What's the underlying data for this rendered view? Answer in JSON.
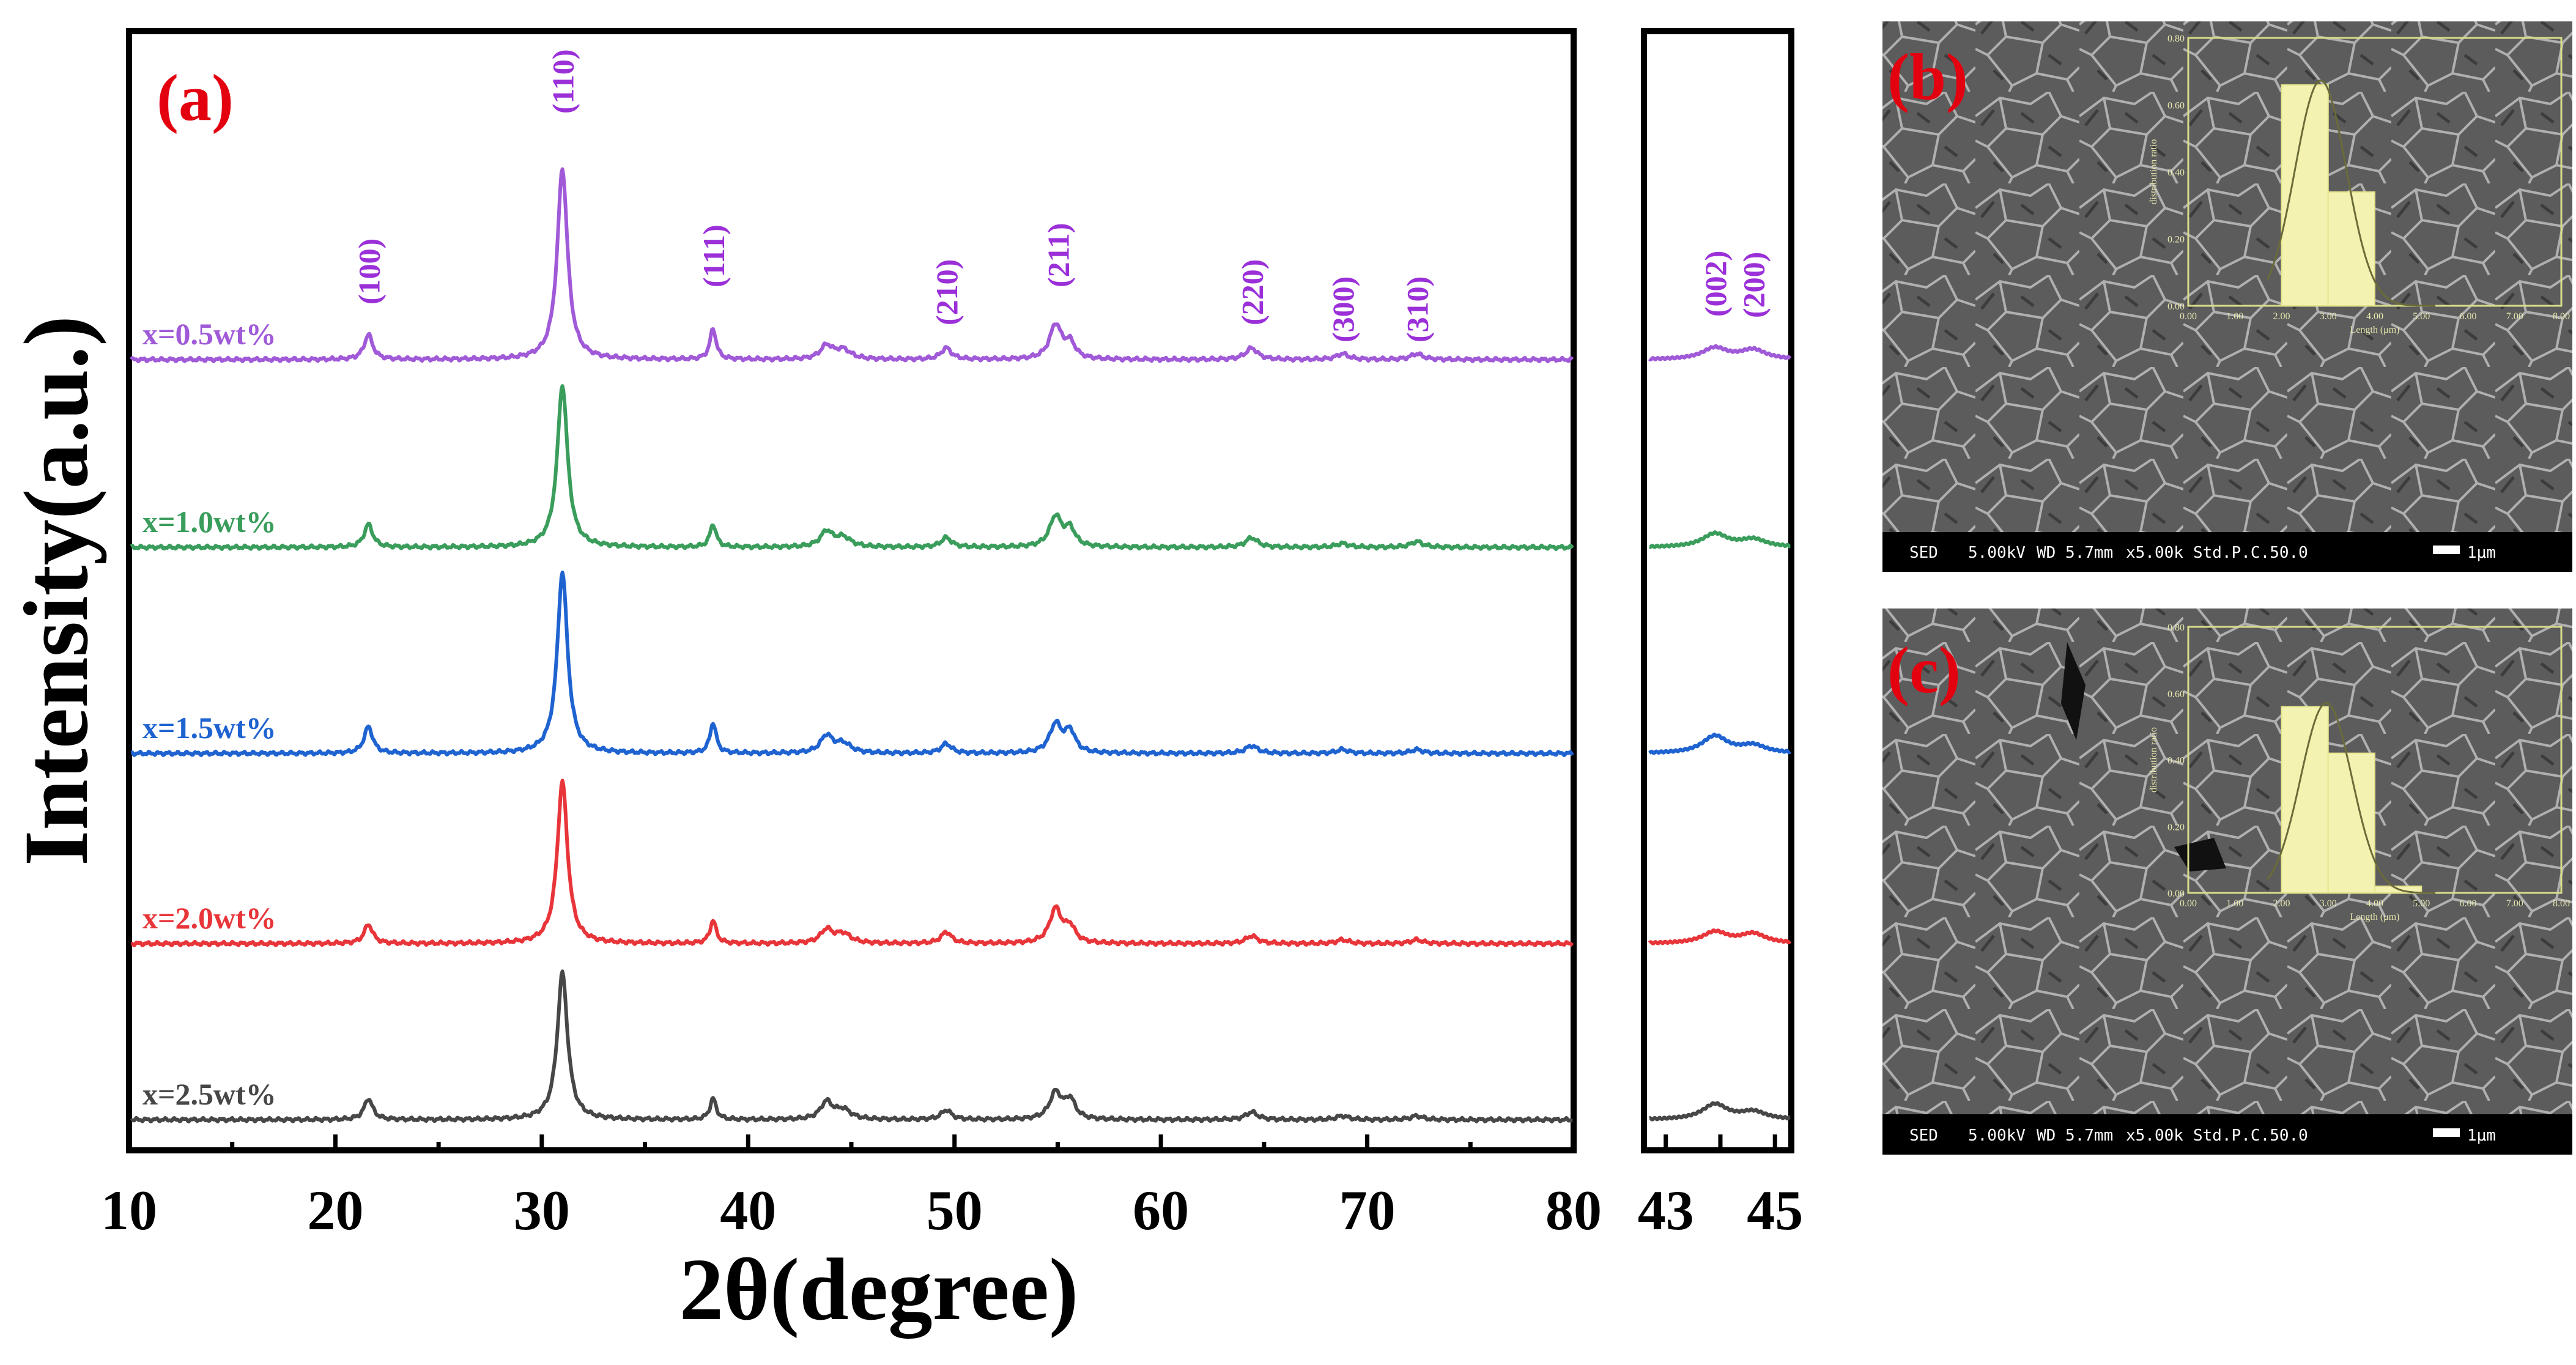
{
  "panel_a": {
    "label": "(a)",
    "label_color": "#e3000f",
    "ylabel": "Intensity(a.u.)",
    "xlabel": "2θ(degree)"
  },
  "panel_b": {
    "label": "(b)",
    "label_color": "#e3000f",
    "sem_info": {
      "detector": "SED",
      "voltage": "5.00kV",
      "wd": "WD 5.7mm",
      "mag": "x5.00k",
      "mode": "Std.P.C.50.0",
      "scale": "1μm"
    },
    "inset": {
      "ylabel": "distribution ratio",
      "xlabel": "Length (μm)"
    }
  },
  "panel_c": {
    "label": "(c)",
    "label_color": "#e3000f",
    "sem_info": {
      "detector": "SED",
      "voltage": "5.00kV",
      "wd": "WD 5.7mm",
      "mag": "x5.00k",
      "mode": "Std.P.C.50.0",
      "scale": "1μm"
    },
    "inset": {
      "ylabel": "distribution ratio",
      "xlabel": "Length (μm)"
    }
  },
  "chart_data": [
    {
      "type": "line",
      "title": "",
      "xlabel": "2θ(degree)",
      "ylabel": "Intensity(a.u.)",
      "xlim": [
        10,
        80
      ],
      "xticks": [
        10,
        20,
        30,
        40,
        50,
        60,
        70,
        80
      ],
      "peak_positions": [
        21.6,
        31.0,
        38.3,
        43.8,
        44.6,
        49.6,
        54.9,
        55.6,
        64.4,
        68.8,
        72.4
      ],
      "peak_labels": [
        {
          "x": 21.6,
          "text": "(100)"
        },
        {
          "x": 31.0,
          "text": "(110)"
        },
        {
          "x": 38.3,
          "text": "(111)"
        },
        {
          "x": 49.6,
          "text": "(210)"
        },
        {
          "x": 55.0,
          "text": "(211)"
        },
        {
          "x": 64.4,
          "text": "(220)"
        },
        {
          "x": 68.8,
          "text": "(300)"
        },
        {
          "x": 72.4,
          "text": "(310)"
        }
      ],
      "peak_label_color": "#9b30d9",
      "series": [
        {
          "name": "x=0.5wt%",
          "color": "#a05ad8",
          "peaks": [
            0.13,
            1.0,
            0.16,
            0.07,
            0.05,
            0.06,
            0.18,
            0.08,
            0.06,
            0.03,
            0.03
          ]
        },
        {
          "name": "x=1.0wt%",
          "color": "#3a9d5c",
          "peaks": [
            0.12,
            0.85,
            0.12,
            0.08,
            0.05,
            0.05,
            0.16,
            0.09,
            0.05,
            0.02,
            0.03
          ]
        },
        {
          "name": "x=1.5wt%",
          "color": "#1f63d1",
          "peaks": [
            0.14,
            0.95,
            0.16,
            0.09,
            0.05,
            0.05,
            0.15,
            0.11,
            0.04,
            0.02,
            0.02
          ]
        },
        {
          "name": "x=2.0wt%",
          "color": "#e8353a",
          "peaks": [
            0.1,
            0.85,
            0.12,
            0.07,
            0.05,
            0.06,
            0.18,
            0.08,
            0.04,
            0.02,
            0.02
          ]
        },
        {
          "name": "x=2.5wt%",
          "color": "#474747",
          "peaks": [
            0.11,
            0.77,
            0.11,
            0.09,
            0.05,
            0.05,
            0.14,
            0.1,
            0.04,
            0.02,
            0.02
          ]
        }
      ]
    },
    {
      "type": "line",
      "title": "",
      "xlabel": "",
      "xlim": [
        42.6,
        45.3
      ],
      "xticks": [
        43,
        45
      ],
      "peak_labels": [
        {
          "x": 43.9,
          "text": "(002)"
        },
        {
          "x": 44.6,
          "text": "(200)"
        }
      ],
      "series": [
        {
          "name": "x=0.5wt%",
          "color": "#a05ad8",
          "peaks": [
            0.06,
            0.05
          ]
        },
        {
          "name": "x=1.0wt%",
          "color": "#3a9d5c",
          "peaks": [
            0.07,
            0.04
          ]
        },
        {
          "name": "x=1.5wt%",
          "color": "#1f63d1",
          "peaks": [
            0.09,
            0.04
          ]
        },
        {
          "name": "x=2.0wt%",
          "color": "#e8353a",
          "peaks": [
            0.06,
            0.05
          ]
        },
        {
          "name": "x=2.5wt%",
          "color": "#474747",
          "peaks": [
            0.08,
            0.04
          ]
        }
      ]
    },
    {
      "type": "bar",
      "title": "",
      "xlabel": "Length (μm)",
      "ylabel": "distribution ratio",
      "xlim": [
        0,
        8
      ],
      "ylim": [
        0,
        0.8
      ],
      "xticks": [
        "0.00",
        "1.00",
        "2.00",
        "3.00",
        "4.00",
        "5.00",
        "6.00",
        "7.00",
        "8.00"
      ],
      "yticks": [
        "0.00",
        "0.20",
        "0.40",
        "0.60",
        "0.80"
      ],
      "bins": [
        [
          2,
          3
        ],
        [
          3,
          4
        ]
      ],
      "values": [
        0.66,
        0.34
      ],
      "fit_curve": "normal"
    },
    {
      "type": "bar",
      "title": "",
      "xlabel": "Length (μm)",
      "ylabel": "distribution ratio",
      "xlim": [
        0,
        8
      ],
      "ylim": [
        0,
        0.8
      ],
      "xticks": [
        "0.00",
        "1.00",
        "2.00",
        "3.00",
        "4.00",
        "5.00",
        "6.00",
        "7.00",
        "8.00"
      ],
      "yticks": [
        "0.00",
        "0.20",
        "0.40",
        "0.60",
        "0.80"
      ],
      "bins": [
        [
          2,
          3
        ],
        [
          3,
          4
        ],
        [
          4,
          5
        ]
      ],
      "values": [
        0.56,
        0.42,
        0.02
      ],
      "fit_curve": "normal"
    }
  ]
}
